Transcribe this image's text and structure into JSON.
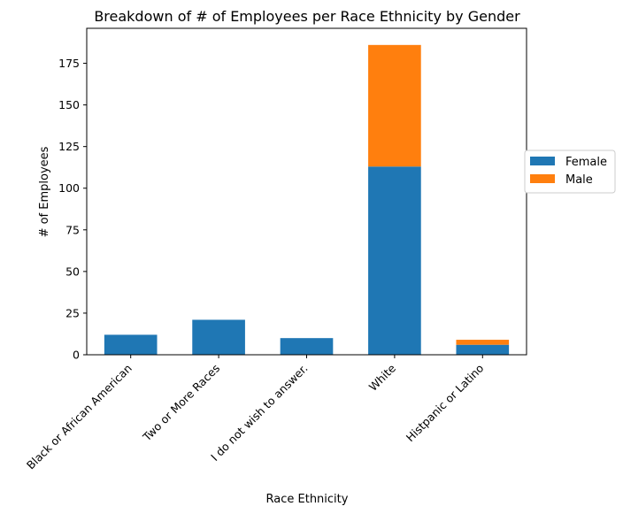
{
  "chart_data": {
    "type": "bar",
    "stacked": true,
    "title": "Breakdown of # of Employees per Race Ethnicity by Gender",
    "xlabel": "Race Ethnicity",
    "ylabel": "# of Employees",
    "categories": [
      "Black or African American",
      "Two or More Races",
      "I do not wish to answer.",
      "White",
      "Histpanic or Latino"
    ],
    "series": [
      {
        "name": "Female",
        "color": "#1f77b4",
        "values": [
          12,
          21,
          10,
          113,
          6
        ]
      },
      {
        "name": "Male",
        "color": "#ff7f0e",
        "values": [
          0,
          0,
          0,
          73,
          3
        ]
      }
    ],
    "ylim": [
      0,
      196
    ],
    "yticks": [
      0,
      25,
      50,
      75,
      100,
      125,
      150,
      175
    ],
    "grid": false,
    "legend_position": "right"
  }
}
